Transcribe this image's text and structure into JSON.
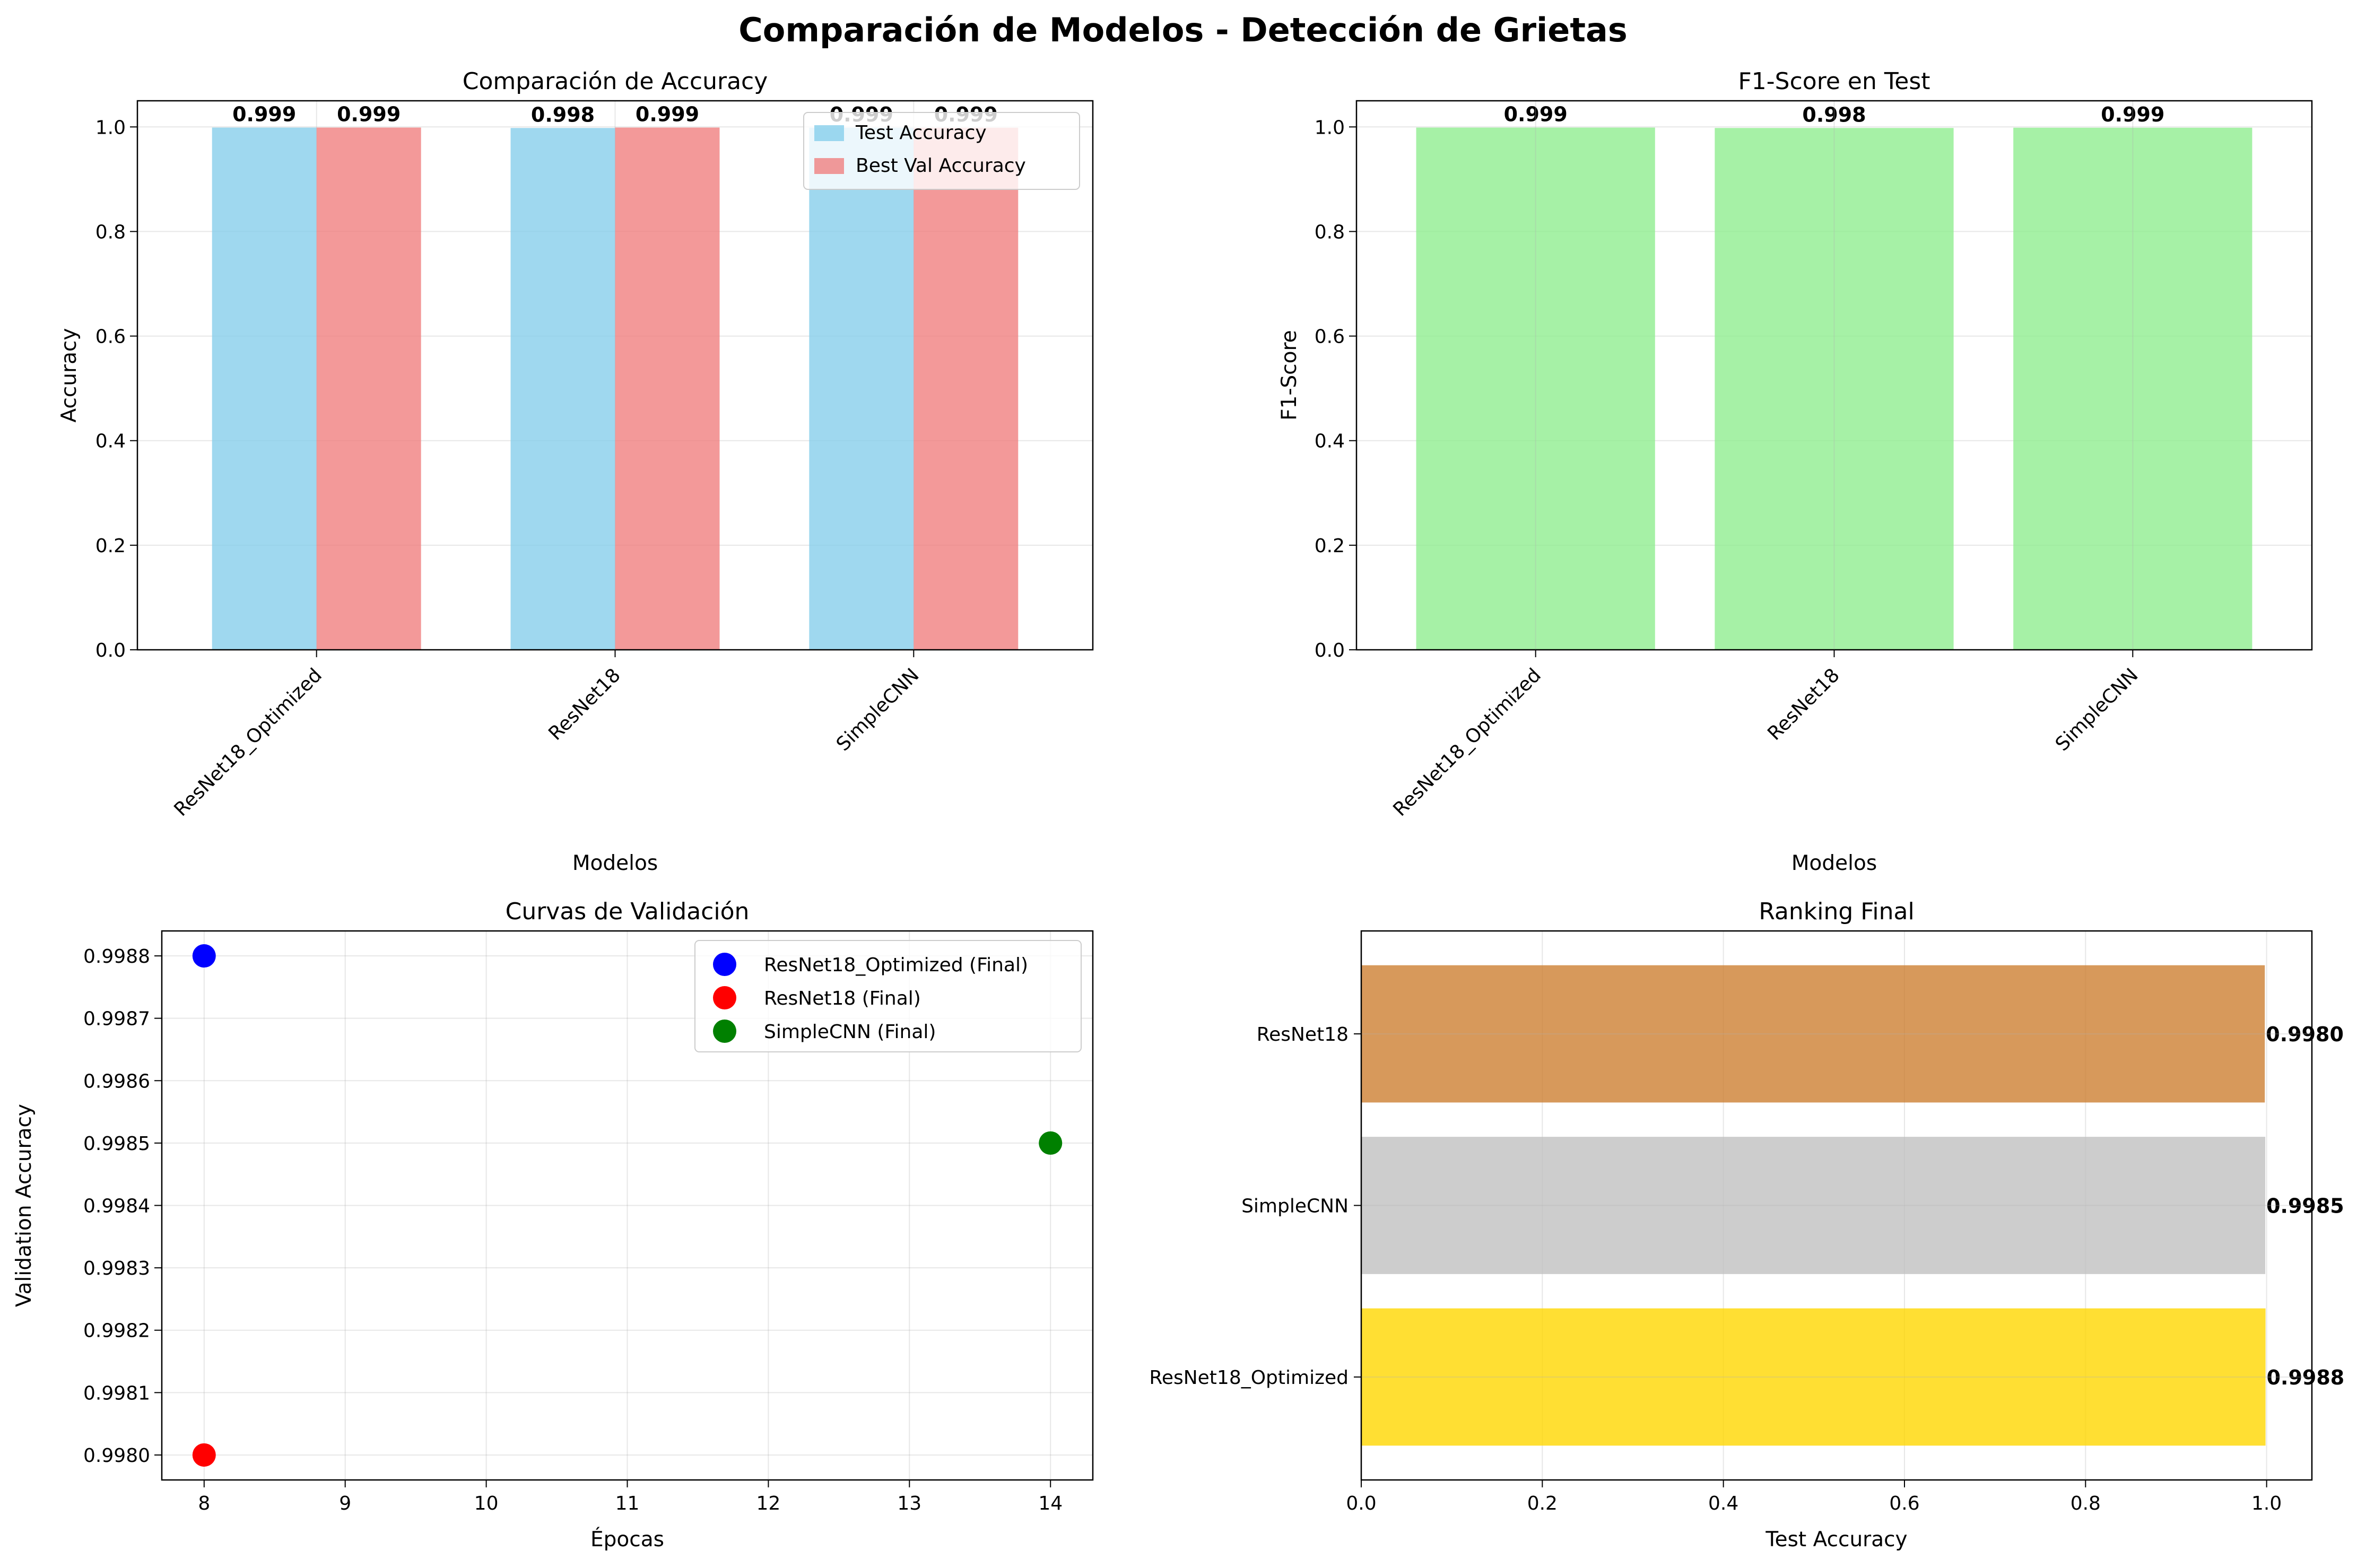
{
  "figure": {
    "title": "Comparación de Modelos - Detección de Grietas"
  },
  "chart_data": [
    {
      "type": "bar",
      "title": "Comparación de Accuracy",
      "xlabel": "Modelos",
      "ylabel": "Accuracy",
      "categories": [
        "ResNet18_Optimized",
        "ResNet18",
        "SimpleCNN"
      ],
      "series": [
        {
          "name": "Test Accuracy",
          "values": [
            0.9988,
            0.998,
            0.9985
          ],
          "labels": [
            "0.999",
            "0.998",
            "0.999"
          ],
          "color": "#87ceeb"
        },
        {
          "name": "Best Val Accuracy",
          "values": [
            0.9988,
            0.9988,
            0.9985
          ],
          "labels": [
            "0.999",
            "0.999",
            "0.999"
          ],
          "color": "#f08080"
        }
      ],
      "ylim": [
        0,
        1.05
      ],
      "yticks": [
        "0.0",
        "0.2",
        "0.4",
        "0.6",
        "0.8",
        "1.0"
      ],
      "grid": true,
      "legend": "upper right"
    },
    {
      "type": "bar",
      "title": "F1-Score en Test",
      "xlabel": "Modelos",
      "ylabel": "F1-Score",
      "categories": [
        "ResNet18_Optimized",
        "ResNet18",
        "SimpleCNN"
      ],
      "values": [
        0.9988,
        0.998,
        0.9985
      ],
      "labels": [
        "0.999",
        "0.998",
        "0.999"
      ],
      "color": "#90ee90",
      "ylim": [
        0,
        1.05
      ],
      "yticks": [
        "0.0",
        "0.2",
        "0.4",
        "0.6",
        "0.8",
        "1.0"
      ],
      "grid": true
    },
    {
      "type": "scatter",
      "title": "Curvas de Validación",
      "xlabel": "Épocas",
      "ylabel": "Validation Accuracy",
      "series": [
        {
          "name": "ResNet18_Optimized (Final)",
          "x": [
            8
          ],
          "y": [
            0.9988
          ],
          "color": "#0000ff"
        },
        {
          "name": "ResNet18 (Final)",
          "x": [
            8
          ],
          "y": [
            0.998
          ],
          "color": "#ff0000"
        },
        {
          "name": "SimpleCNN (Final)",
          "x": [
            14
          ],
          "y": [
            0.9985
          ],
          "color": "#008000"
        }
      ],
      "xlim": [
        7.7,
        14.3
      ],
      "ylim": [
        0.99796,
        0.99884
      ],
      "xticks": [
        "8",
        "9",
        "10",
        "11",
        "12",
        "13",
        "14"
      ],
      "yticks": [
        "0.9980",
        "0.9981",
        "0.9982",
        "0.9983",
        "0.9984",
        "0.9985",
        "0.9986",
        "0.9987",
        "0.9988"
      ],
      "grid": true,
      "legend": "upper right"
    },
    {
      "type": "bar",
      "orientation": "horizontal",
      "title": "Ranking Final",
      "xlabel": "Test Accuracy",
      "categories": [
        "ResNet18_Optimized",
        "SimpleCNN",
        "ResNet18"
      ],
      "values": [
        0.9988,
        0.9985,
        0.998
      ],
      "labels": [
        "0.9988",
        "0.9985",
        "0.9980"
      ],
      "colors": [
        "#ffd700",
        "#c0c0c0",
        "#cd7f32"
      ],
      "xlim": [
        0,
        1.05
      ],
      "xticks": [
        "0.0",
        "0.2",
        "0.4",
        "0.6",
        "0.8",
        "1.0"
      ],
      "grid": true
    }
  ]
}
